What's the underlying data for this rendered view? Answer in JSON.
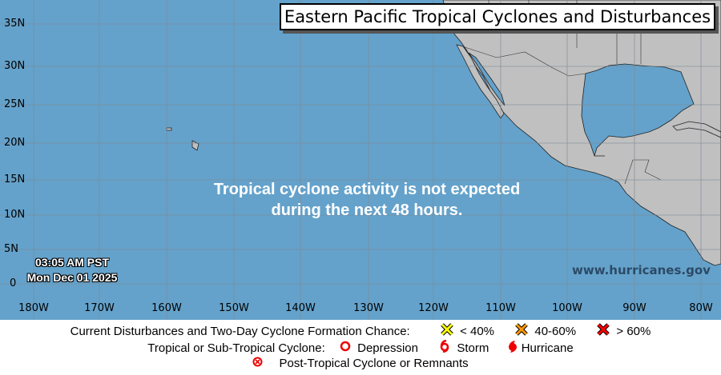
{
  "title": "Eastern Pacific Tropical Cyclones and Disturbances",
  "message": [
    "Tropical cyclone activity is not expected",
    "during the next 48 hours."
  ],
  "timestamp": {
    "time": "03:05 AM PST",
    "date": "Mon Dec 01 2025"
  },
  "website": "www.hurricanes.gov",
  "latitudes": [
    "35N",
    "30N",
    "25N",
    "20N",
    "15N",
    "10N",
    "5N",
    "0"
  ],
  "longitudes": [
    "180W",
    "170W",
    "160W",
    "150W",
    "140W",
    "130W",
    "120W",
    "110W",
    "100W",
    "90W",
    "80W"
  ],
  "colors": {
    "ocean": "#64a2cb",
    "land": "#c0c0c0",
    "grid": "#7f8a94",
    "low": "#ffff00",
    "medium": "#ff9900",
    "high": "#ff0000",
    "cyclone": "#ff0000"
  },
  "legend": {
    "disturbances_label": "Current Disturbances and Two-Day Cyclone Formation Chance:",
    "low": "< 40%",
    "medium": "40-60%",
    "high": "> 60%",
    "cyclone_label": "Tropical or Sub-Tropical Cyclone:",
    "depression": "Depression",
    "storm": "Storm",
    "hurricane": "Hurricane",
    "post_tropical": "Post-Tropical Cyclone or Remnants"
  }
}
